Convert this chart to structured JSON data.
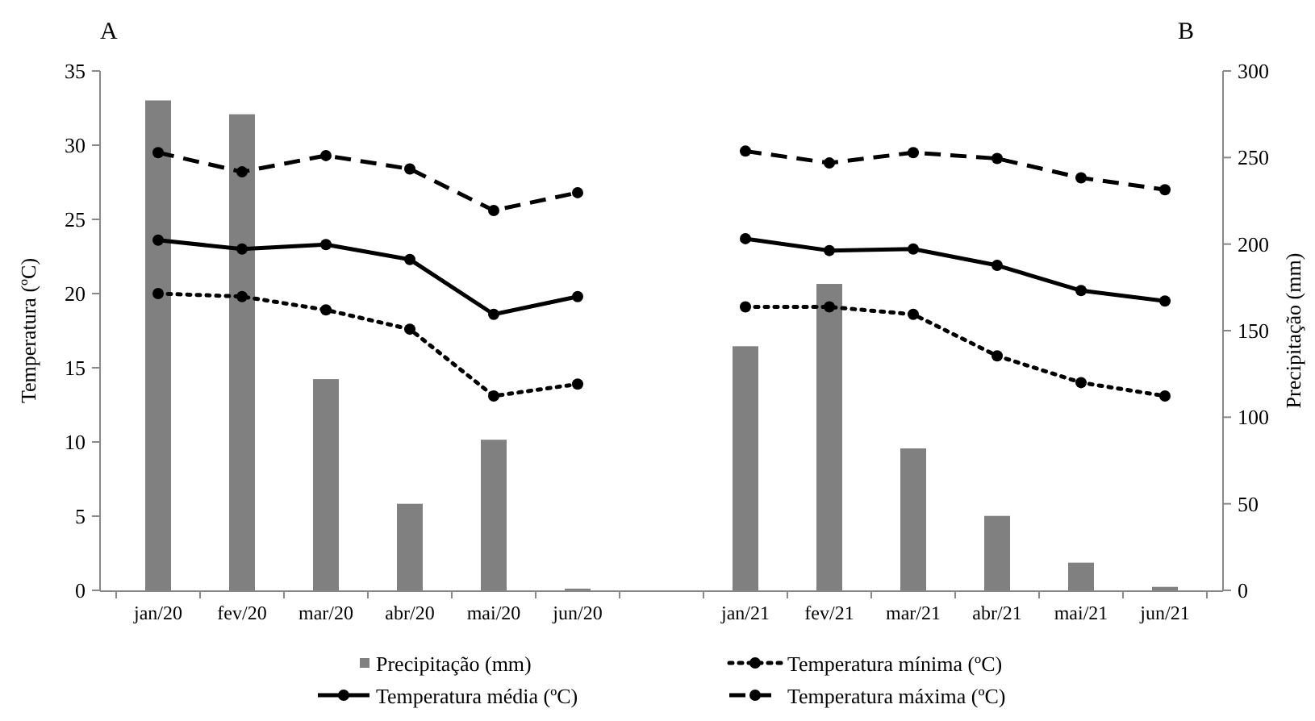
{
  "chart_data": {
    "type": "bar",
    "ylabel": "Temperatura (ºC)",
    "y2label": "Precipitação (mm)",
    "annotations": [
      "A",
      "B"
    ],
    "categories": [
      "jan/20",
      "fev/20",
      "mar/20",
      "abr/20",
      "mai/20",
      "jun/20",
      null,
      "jan/21",
      "fev/21",
      "mar/21",
      "abr/21",
      "mai/21",
      "jun/21"
    ],
    "series": [
      {
        "name": "Precipitação (mm)",
        "axis": "y2",
        "color": "#808080",
        "values": [
          283,
          275,
          122,
          50,
          87,
          1,
          null,
          141,
          177,
          82,
          43,
          16,
          2
        ]
      },
      {
        "name": "Temperatura mínima (ºC)",
        "type": "line",
        "color": "#000000",
        "line_style": "dotted",
        "marker": "circle",
        "values": [
          20.0,
          19.8,
          18.9,
          17.6,
          13.1,
          13.9,
          null,
          19.1,
          19.1,
          18.6,
          15.8,
          14.0,
          13.1
        ]
      },
      {
        "name": "Temperatura média (ºC)",
        "type": "line",
        "color": "#000000",
        "line_style": "solid",
        "marker": "circle",
        "values": [
          23.6,
          23.0,
          23.3,
          22.3,
          18.6,
          19.8,
          null,
          23.7,
          22.9,
          23.0,
          21.9,
          20.2,
          19.5
        ]
      },
      {
        "name": "Temperatura máxima (ºC)",
        "type": "line",
        "color": "#000000",
        "line_style": "dashed",
        "marker": "circle",
        "values": [
          29.5,
          28.2,
          29.3,
          28.4,
          25.6,
          26.8,
          null,
          29.6,
          28.8,
          29.5,
          29.1,
          27.8,
          27.0
        ]
      }
    ],
    "ylim": [
      0,
      35
    ],
    "yticks": [
      0,
      5,
      10,
      15,
      20,
      25,
      30,
      35
    ],
    "y2lim": [
      0,
      300
    ],
    "y2ticks": [
      0,
      50,
      100,
      150,
      200,
      250,
      300
    ],
    "grid": false,
    "legend": "bottom"
  }
}
